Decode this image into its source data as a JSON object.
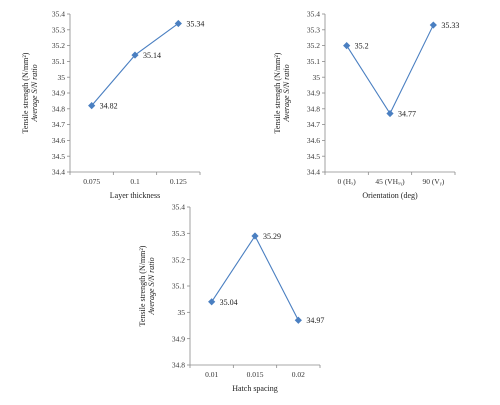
{
  "series_color": "#4a7fc1",
  "chart_data": [
    {
      "type": "line",
      "categories": [
        "0.075",
        "0.1",
        "0.125"
      ],
      "values": [
        34.82,
        35.14,
        35.34
      ],
      "data_labels": [
        "34.82",
        "35.14",
        "35.34"
      ],
      "xlabel": "Layer thickness",
      "ylabel_line1": "Tensile strength (N/mm²)",
      "ylabel_line2": "Average S/N ratio",
      "ylim": [
        34.4,
        35.4
      ],
      "yticks": [
        "34.4",
        "34.5",
        "34.6",
        "34.7",
        "34.8",
        "34.9",
        "35",
        "35.1",
        "35.2",
        "35.3",
        "35.4"
      ],
      "grid": false,
      "legend": "none"
    },
    {
      "type": "line",
      "categories": [
        "0 (Hₓ)",
        "45 (VHₓᵧ)",
        "90 (Vᵧ)"
      ],
      "values": [
        35.2,
        34.77,
        35.33
      ],
      "data_labels": [
        "35.2",
        "34.77",
        "35.33"
      ],
      "xlabel": "Orientation (deg)",
      "ylabel_line1": "Tensile strength (N/mm²)",
      "ylabel_line2": "Average S/N ratio",
      "ylim": [
        34.4,
        35.4
      ],
      "yticks": [
        "34.4",
        "34.5",
        "34.6",
        "34.7",
        "34.8",
        "34.9",
        "35",
        "35.1",
        "35.2",
        "35.3",
        "35.4"
      ],
      "grid": false,
      "legend": "none"
    },
    {
      "type": "line",
      "categories": [
        "0.01",
        "0.015",
        "0.02"
      ],
      "values": [
        35.04,
        35.29,
        34.97
      ],
      "data_labels": [
        "35.04",
        "35.29",
        "34.97"
      ],
      "xlabel": "Hatch spacing",
      "ylabel_line1": "Tensile strength (N/mm²)",
      "ylabel_line2": "Average S/N ratio",
      "ylim": [
        34.8,
        35.4
      ],
      "yticks": [
        "34.8",
        "34.9",
        "35",
        "35.1",
        "35.2",
        "35.3",
        "35.4"
      ],
      "grid": false,
      "legend": "none"
    }
  ]
}
